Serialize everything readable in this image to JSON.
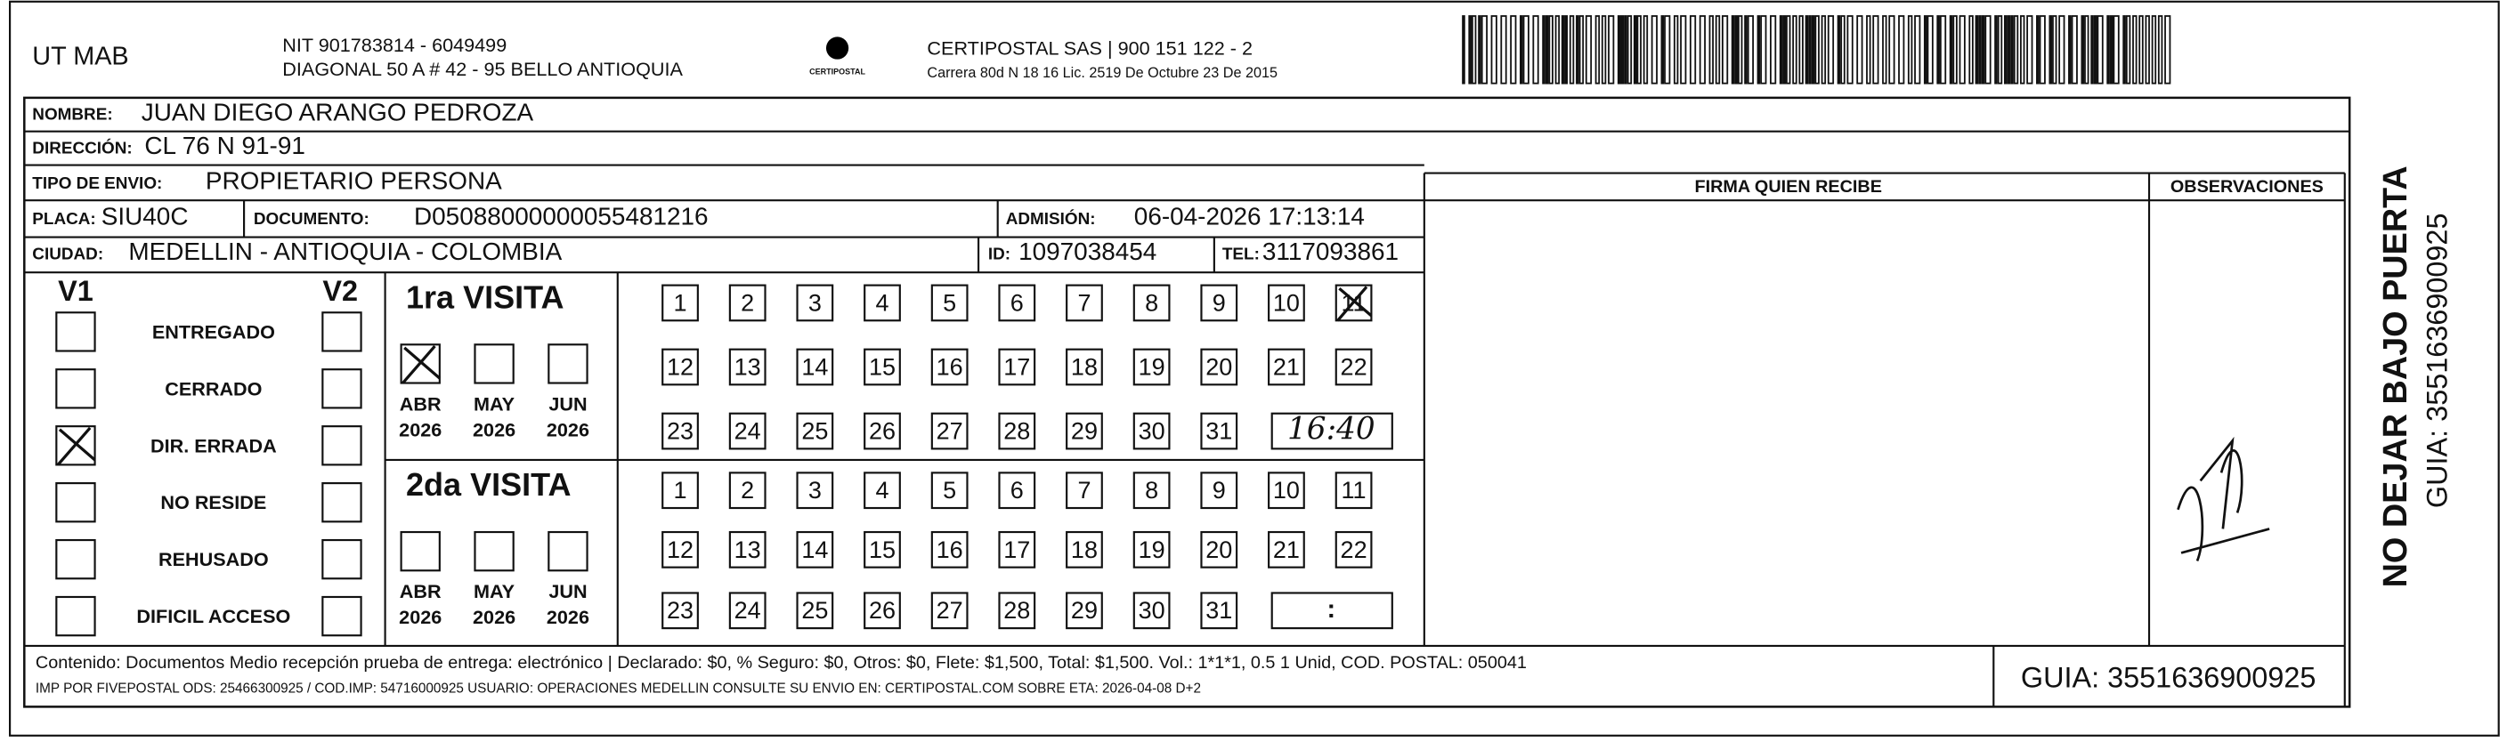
{
  "header": {
    "company": "UT MAB",
    "nit": "NIT 901783814 - 6049499",
    "address": "DIAGONAL 50 A # 42 - 95  BELLO  ANTIOQUIA",
    "logo_text": "CERTIPOSTAL",
    "carrier": "CERTIPOSTAL SAS | 900 151 122 - 2",
    "carrier_address": "Carrera 80d N 18 16  Lic. 2519 De Octubre 23 De 2015"
  },
  "fields": {
    "nombre": {
      "label": "NOMBRE:",
      "value": "JUAN DIEGO ARANGO PEDROZA"
    },
    "direccion": {
      "label": "DIRECCIÓN:",
      "value": "CL 76 N 91-91"
    },
    "tipo": {
      "label": "TIPO DE ENVIO:",
      "value": "PROPIETARIO PERSONA"
    },
    "placa": {
      "label": "PLACA:",
      "value": "SIU40C"
    },
    "documento": {
      "label": "DOCUMENTO:",
      "value": "D05088000000055481216"
    },
    "admision": {
      "label": "ADMISIÓN:",
      "value": "06-04-2026 17:13:14"
    },
    "ciudad": {
      "label": "CIUDAD:",
      "value": "MEDELLIN - ANTIOQUIA - COLOMBIA"
    },
    "id": {
      "label": "ID:",
      "value": "1097038454"
    },
    "tel": {
      "label": "TEL:",
      "value": "3117093861"
    }
  },
  "columns": {
    "firma": "FIRMA QUIEN RECIBE",
    "observaciones": "OBSERVACIONES"
  },
  "status": {
    "v1": "V1",
    "v2": "V2",
    "rows": [
      {
        "label": "ENTREGADO",
        "v1": false,
        "v2": false
      },
      {
        "label": "CERRADO",
        "v1": false,
        "v2": false
      },
      {
        "label": "DIR. ERRADA",
        "v1": true,
        "v2": false
      },
      {
        "label": "NO RESIDE",
        "v1": false,
        "v2": false
      },
      {
        "label": "REHUSADO",
        "v1": false,
        "v2": false
      },
      {
        "label": "DIFICIL ACCESO",
        "v1": false,
        "v2": false
      }
    ]
  },
  "visits": [
    {
      "title": "1ra VISITA",
      "months": [
        {
          "label": "ABR",
          "year": "2026",
          "checked": true
        },
        {
          "label": "MAY",
          "year": "2026",
          "checked": false
        },
        {
          "label": "JUN",
          "year": "2026",
          "checked": false
        }
      ],
      "days": [
        1,
        2,
        3,
        4,
        5,
        6,
        7,
        8,
        9,
        10,
        11,
        12,
        13,
        14,
        15,
        16,
        17,
        18,
        19,
        20,
        21,
        22,
        23,
        24,
        25,
        26,
        27,
        28,
        29,
        30,
        31
      ],
      "checked_day": 11,
      "time": "16:40"
    },
    {
      "title": "2da VISITA",
      "months": [
        {
          "label": "ABR",
          "year": "2026",
          "checked": false
        },
        {
          "label": "MAY",
          "year": "2026",
          "checked": false
        },
        {
          "label": "JUN",
          "year": "2026",
          "checked": false
        }
      ],
      "days": [
        1,
        2,
        3,
        4,
        5,
        6,
        7,
        8,
        9,
        10,
        11,
        12,
        13,
        14,
        15,
        16,
        17,
        18,
        19,
        20,
        21,
        22,
        23,
        24,
        25,
        26,
        27,
        28,
        29,
        30,
        31
      ],
      "time": ":"
    }
  ],
  "footer": {
    "content": "Contenido: Documentos Medio recepción prueba de entrega: electrónico | Declarado: $0, % Seguro: $0, Otros: $0, Flete: $1,500, Total: $1,500. Vol.: 1*1*1, 0.5  1 Unid, COD. POSTAL: 050041",
    "imp": "IMP POR FIVEPOSTAL ODS: 25466300925 / COD.IMP: 54716000925 USUARIO: OPERACIONES MEDELLIN CONSULTE SU ENVIO EN: CERTIPOSTAL.COM SOBRE ETA: 2026-04-08 D+2",
    "guia": "GUIA: 3551636900925"
  },
  "side": {
    "warning": "NO DEJAR BAJO PUERTA",
    "guia": "GUIA: 3551636900925"
  }
}
